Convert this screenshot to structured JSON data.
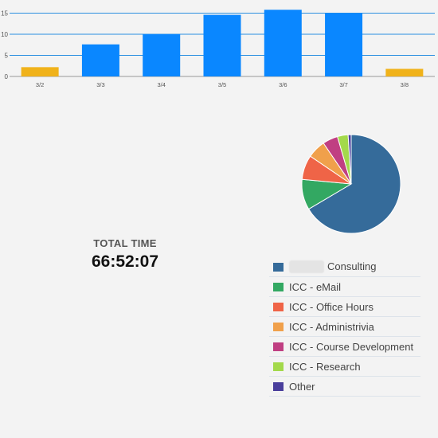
{
  "chart_data": [
    {
      "type": "bar",
      "categories": [
        "3/2",
        "3/3",
        "3/4",
        "3/5",
        "3/6",
        "3/7",
        "3/8"
      ],
      "values": [
        2.2,
        7.6,
        10.0,
        14.6,
        15.8,
        15.0,
        1.8
      ],
      "bar_colors": [
        "#f0b21a",
        "#0a87ff",
        "#0a87ff",
        "#0a87ff",
        "#0a87ff",
        "#0a87ff",
        "#f0b21a"
      ],
      "y_ticks": [
        0,
        5,
        10,
        15
      ],
      "ylim": [
        0,
        16
      ],
      "grid": true
    },
    {
      "type": "pie",
      "labels": [
        "Consulting",
        "ICC - eMail",
        "ICC - Office Hours",
        "ICC - Administrivia",
        "ICC - Course Development",
        "ICC - Research",
        "Other"
      ],
      "values": [
        66.5,
        10.0,
        8.0,
        6.0,
        5.0,
        3.5,
        1.0
      ],
      "colors": [
        "#356b9a",
        "#33a862",
        "#ef6447",
        "#f0a04b",
        "#c03f82",
        "#a3d94b",
        "#4a3f9c"
      ],
      "legend": "bottom"
    }
  ],
  "total": {
    "label": "TOTAL TIME",
    "value": "66:52:07"
  }
}
